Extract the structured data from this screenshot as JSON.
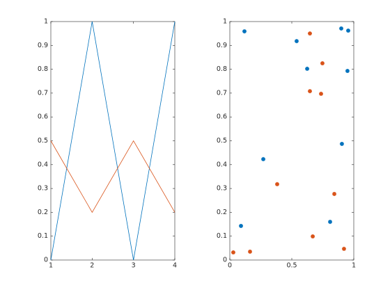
{
  "chart_data": [
    {
      "type": "line",
      "x": [
        1,
        2,
        3,
        4
      ],
      "series": [
        {
          "color": "#0072bd",
          "values": [
            0,
            1,
            0,
            1
          ]
        },
        {
          "color": "#d95319",
          "values": [
            0.5,
            0.2,
            0.5,
            0.2
          ]
        }
      ],
      "xlim": [
        1,
        4
      ],
      "xticks": [
        1,
        2,
        3,
        4
      ],
      "ylim": [
        0,
        1
      ],
      "yticks": [
        0,
        0.1,
        0.2,
        0.3,
        0.4,
        0.5,
        0.6,
        0.7,
        0.8,
        0.9,
        1
      ]
    },
    {
      "type": "scatter",
      "series": [
        {
          "color": "#0072bd",
          "x": [
            0.118,
            0.539,
            0.624,
            0.899,
            0.955,
            0.949,
            0.27,
            0.904,
            0.809,
            0.09
          ],
          "values": [
            0.959,
            0.918,
            0.802,
            0.971,
            0.962,
            0.793,
            0.423,
            0.487,
            0.16,
            0.143
          ]
        },
        {
          "color": "#d95319",
          "x": [
            0.646,
            0.747,
            0.646,
            0.736,
            0.382,
            0.843,
            0.669,
            0.028,
            0.163,
            0.921
          ],
          "values": [
            0.95,
            0.825,
            0.708,
            0.697,
            0.318,
            0.277,
            0.099,
            0.032,
            0.035,
            0.047
          ]
        }
      ],
      "xlim": [
        0,
        1
      ],
      "xticks": [
        0,
        0.5,
        1
      ],
      "ylim": [
        0,
        1
      ],
      "yticks": [
        0,
        0.1,
        0.2,
        0.3,
        0.4,
        0.5,
        0.6,
        0.7,
        0.8,
        0.9,
        1
      ]
    }
  ]
}
